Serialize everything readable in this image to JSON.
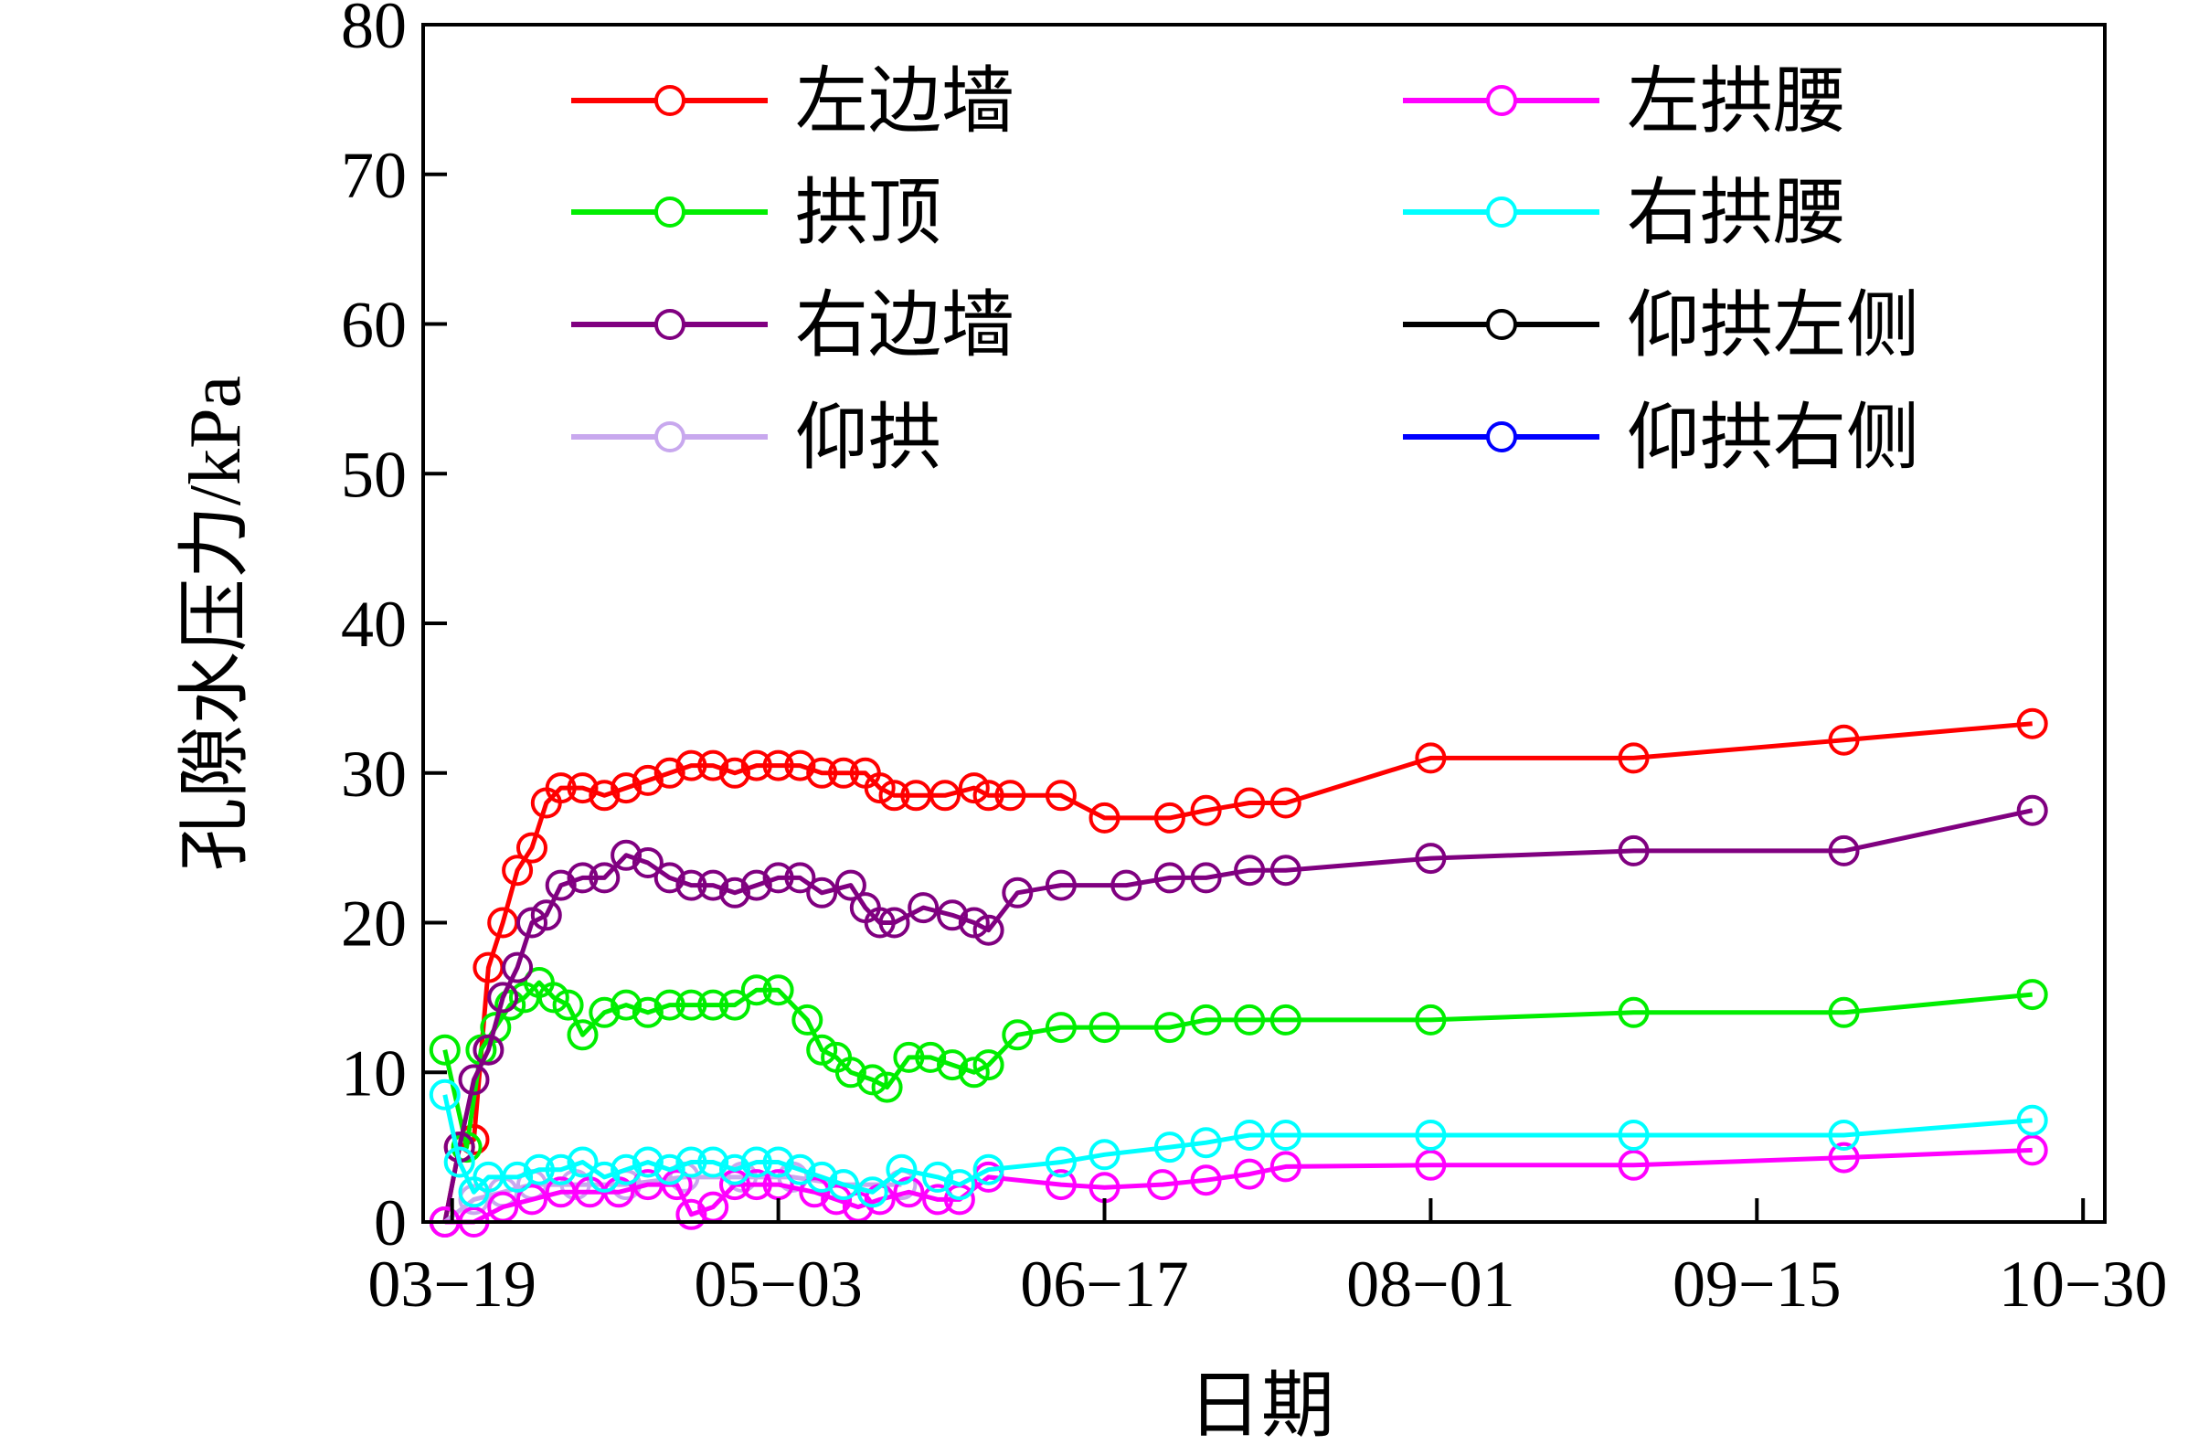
{
  "chart_data": {
    "type": "line",
    "title": "",
    "xlabel": "日期",
    "ylabel": "孔隙水压力/kPa",
    "ylim": [
      0,
      80
    ],
    "yticks": [
      0,
      10,
      20,
      30,
      40,
      50,
      60,
      70,
      80
    ],
    "xlim": [
      "2023-03-15",
      "2023-11-02"
    ],
    "xticks": [
      {
        "date": "2023-03-19",
        "label": "03−19"
      },
      {
        "date": "2023-05-03",
        "label": "05−03"
      },
      {
        "date": "2023-06-17",
        "label": "06−17"
      },
      {
        "date": "2023-08-01",
        "label": "08−01"
      },
      {
        "date": "2023-09-15",
        "label": "09−15"
      },
      {
        "date": "2023-10-30",
        "label": "10−30"
      }
    ],
    "grid": false,
    "legend_position": "top",
    "series": [
      {
        "name": "左边墙",
        "color": "#ff0000",
        "points": [
          [
            "2023-03-18",
            0
          ],
          [
            "2023-03-20",
            5
          ],
          [
            "2023-03-22",
            5.5
          ],
          [
            "2023-03-24",
            17
          ],
          [
            "2023-03-26",
            20
          ],
          [
            "2023-03-28",
            23.5
          ],
          [
            "2023-03-30",
            25
          ],
          [
            "2023-04-01",
            28
          ],
          [
            "2023-04-03",
            29
          ],
          [
            "2023-04-06",
            29
          ],
          [
            "2023-04-09",
            28.5
          ],
          [
            "2023-04-12",
            29
          ],
          [
            "2023-04-15",
            29.5
          ],
          [
            "2023-04-18",
            30
          ],
          [
            "2023-04-21",
            30.5
          ],
          [
            "2023-04-24",
            30.5
          ],
          [
            "2023-04-27",
            30
          ],
          [
            "2023-04-30",
            30.5
          ],
          [
            "2023-05-03",
            30.5
          ],
          [
            "2023-05-06",
            30.5
          ],
          [
            "2023-05-09",
            30
          ],
          [
            "2023-05-12",
            30
          ],
          [
            "2023-05-15",
            30
          ],
          [
            "2023-05-17",
            29
          ],
          [
            "2023-05-19",
            28.5
          ],
          [
            "2023-05-22",
            28.5
          ],
          [
            "2023-05-26",
            28.5
          ],
          [
            "2023-05-30",
            29
          ],
          [
            "2023-06-01",
            28.5
          ],
          [
            "2023-06-04",
            28.5
          ],
          [
            "2023-06-11",
            28.5
          ],
          [
            "2023-06-17",
            27
          ],
          [
            "2023-06-26",
            27
          ],
          [
            "2023-07-01",
            27.5
          ],
          [
            "2023-07-07",
            28
          ],
          [
            "2023-07-12",
            28
          ],
          [
            "2023-08-01",
            31
          ],
          [
            "2023-08-29",
            31
          ],
          [
            "2023-09-27",
            32.2
          ],
          [
            "2023-10-23",
            33.3
          ]
        ]
      },
      {
        "name": "拱顶",
        "color": "#00ee00",
        "points": [
          [
            "2023-03-18",
            11.5
          ],
          [
            "2023-03-21",
            5
          ],
          [
            "2023-03-23",
            11.5
          ],
          [
            "2023-03-25",
            13
          ],
          [
            "2023-03-27",
            14.5
          ],
          [
            "2023-03-29",
            15
          ],
          [
            "2023-03-31",
            16
          ],
          [
            "2023-04-02",
            15
          ],
          [
            "2023-04-04",
            14.5
          ],
          [
            "2023-04-06",
            12.5
          ],
          [
            "2023-04-09",
            14
          ],
          [
            "2023-04-12",
            14.5
          ],
          [
            "2023-04-15",
            14
          ],
          [
            "2023-04-18",
            14.5
          ],
          [
            "2023-04-21",
            14.5
          ],
          [
            "2023-04-24",
            14.5
          ],
          [
            "2023-04-27",
            14.5
          ],
          [
            "2023-04-30",
            15.5
          ],
          [
            "2023-05-03",
            15.5
          ],
          [
            "2023-05-07",
            13.5
          ],
          [
            "2023-05-09",
            11.5
          ],
          [
            "2023-05-11",
            11
          ],
          [
            "2023-05-13",
            10
          ],
          [
            "2023-05-16",
            9.5
          ],
          [
            "2023-05-18",
            9
          ],
          [
            "2023-05-21",
            11
          ],
          [
            "2023-05-24",
            11
          ],
          [
            "2023-05-27",
            10.5
          ],
          [
            "2023-05-30",
            10
          ],
          [
            "2023-06-01",
            10.5
          ],
          [
            "2023-06-05",
            12.5
          ],
          [
            "2023-06-11",
            13
          ],
          [
            "2023-06-17",
            13
          ],
          [
            "2023-06-26",
            13
          ],
          [
            "2023-07-01",
            13.5
          ],
          [
            "2023-07-07",
            13.5
          ],
          [
            "2023-07-12",
            13.5
          ],
          [
            "2023-08-01",
            13.5
          ],
          [
            "2023-08-29",
            14
          ],
          [
            "2023-09-27",
            14
          ],
          [
            "2023-10-23",
            15.2
          ]
        ]
      },
      {
        "name": "右边墙",
        "color": "#800080",
        "points": [
          [
            "2023-03-18",
            0
          ],
          [
            "2023-03-20",
            5
          ],
          [
            "2023-03-22",
            9.5
          ],
          [
            "2023-03-24",
            11.5
          ],
          [
            "2023-03-26",
            15
          ],
          [
            "2023-03-28",
            17
          ],
          [
            "2023-03-30",
            20
          ],
          [
            "2023-04-01",
            20.5
          ],
          [
            "2023-04-03",
            22.5
          ],
          [
            "2023-04-06",
            23
          ],
          [
            "2023-04-09",
            23
          ],
          [
            "2023-04-12",
            24.5
          ],
          [
            "2023-04-15",
            24
          ],
          [
            "2023-04-18",
            23
          ],
          [
            "2023-04-21",
            22.5
          ],
          [
            "2023-04-24",
            22.5
          ],
          [
            "2023-04-27",
            22
          ],
          [
            "2023-04-30",
            22.5
          ],
          [
            "2023-05-03",
            23
          ],
          [
            "2023-05-06",
            23
          ],
          [
            "2023-05-09",
            22
          ],
          [
            "2023-05-13",
            22.5
          ],
          [
            "2023-05-15",
            21
          ],
          [
            "2023-05-17",
            20
          ],
          [
            "2023-05-19",
            20
          ],
          [
            "2023-05-23",
            21
          ],
          [
            "2023-05-27",
            20.5
          ],
          [
            "2023-05-30",
            20
          ],
          [
            "2023-06-01",
            19.5
          ],
          [
            "2023-06-05",
            22
          ],
          [
            "2023-06-11",
            22.5
          ],
          [
            "2023-06-20",
            22.5
          ],
          [
            "2023-06-26",
            23
          ],
          [
            "2023-07-01",
            23
          ],
          [
            "2023-07-07",
            23.5
          ],
          [
            "2023-07-12",
            23.5
          ],
          [
            "2023-08-01",
            24.3
          ],
          [
            "2023-08-29",
            24.8
          ],
          [
            "2023-09-27",
            24.8
          ],
          [
            "2023-10-23",
            27.5
          ]
        ]
      },
      {
        "name": "仰拱",
        "color": "#c8a8ee",
        "points": [
          [
            "2023-03-18",
            0
          ],
          [
            "2023-03-22",
            1.5
          ],
          [
            "2023-03-26",
            2
          ],
          [
            "2023-03-30",
            2.5
          ],
          [
            "2023-04-05",
            2.5
          ],
          [
            "2023-04-12",
            2.5
          ],
          [
            "2023-04-20",
            3
          ],
          [
            "2023-04-28",
            3
          ],
          [
            "2023-05-05",
            3
          ],
          [
            "2023-05-12",
            2.5
          ],
          [
            "2023-05-20",
            2.5
          ]
        ]
      },
      {
        "name": "左拱腰",
        "color": "#ff00ff",
        "points": [
          [
            "2023-03-18",
            0
          ],
          [
            "2023-03-22",
            0
          ],
          [
            "2023-03-26",
            1
          ],
          [
            "2023-03-30",
            1.5
          ],
          [
            "2023-04-03",
            2
          ],
          [
            "2023-04-07",
            2
          ],
          [
            "2023-04-11",
            2
          ],
          [
            "2023-04-15",
            2.5
          ],
          [
            "2023-04-19",
            2.5
          ],
          [
            "2023-04-21",
            0.5
          ],
          [
            "2023-04-24",
            1
          ],
          [
            "2023-04-27",
            2.5
          ],
          [
            "2023-04-30",
            2.5
          ],
          [
            "2023-05-03",
            2.5
          ],
          [
            "2023-05-08",
            2
          ],
          [
            "2023-05-11",
            1.5
          ],
          [
            "2023-05-14",
            1
          ],
          [
            "2023-05-17",
            1.5
          ],
          [
            "2023-05-21",
            2
          ],
          [
            "2023-05-25",
            1.5
          ],
          [
            "2023-05-28",
            1.5
          ],
          [
            "2023-06-01",
            3
          ],
          [
            "2023-06-11",
            2.5
          ],
          [
            "2023-06-17",
            2.3
          ],
          [
            "2023-06-25",
            2.5
          ],
          [
            "2023-07-01",
            2.8
          ],
          [
            "2023-07-07",
            3.2
          ],
          [
            "2023-07-12",
            3.7
          ],
          [
            "2023-08-01",
            3.8
          ],
          [
            "2023-08-29",
            3.8
          ],
          [
            "2023-09-27",
            4.3
          ],
          [
            "2023-10-23",
            4.8
          ]
        ]
      },
      {
        "name": "右拱腰",
        "color": "#00ffff",
        "points": [
          [
            "2023-03-18",
            8.5
          ],
          [
            "2023-03-20",
            4
          ],
          [
            "2023-03-22",
            2
          ],
          [
            "2023-03-24",
            3
          ],
          [
            "2023-03-28",
            3
          ],
          [
            "2023-03-31",
            3.5
          ],
          [
            "2023-04-03",
            3.5
          ],
          [
            "2023-04-06",
            4
          ],
          [
            "2023-04-09",
            3
          ],
          [
            "2023-04-12",
            3.5
          ],
          [
            "2023-04-15",
            4
          ],
          [
            "2023-04-18",
            3.5
          ],
          [
            "2023-04-21",
            4
          ],
          [
            "2023-04-24",
            4
          ],
          [
            "2023-04-27",
            3.5
          ],
          [
            "2023-04-30",
            4
          ],
          [
            "2023-05-03",
            4
          ],
          [
            "2023-05-06",
            3.5
          ],
          [
            "2023-05-09",
            3
          ],
          [
            "2023-05-12",
            2.5
          ],
          [
            "2023-05-16",
            2
          ],
          [
            "2023-05-20",
            3.5
          ],
          [
            "2023-05-25",
            3
          ],
          [
            "2023-05-28",
            2.5
          ],
          [
            "2023-06-01",
            3.5
          ],
          [
            "2023-06-11",
            4
          ],
          [
            "2023-06-17",
            4.5
          ],
          [
            "2023-06-26",
            5
          ],
          [
            "2023-07-01",
            5.3
          ],
          [
            "2023-07-07",
            5.8
          ],
          [
            "2023-07-12",
            5.8
          ],
          [
            "2023-08-01",
            5.8
          ],
          [
            "2023-08-29",
            5.8
          ],
          [
            "2023-09-27",
            5.8
          ],
          [
            "2023-10-23",
            6.8
          ]
        ]
      },
      {
        "name": "仰拱左侧",
        "color": "#000000",
        "points": []
      },
      {
        "name": "仰拱右侧",
        "color": "#0000ff",
        "points": []
      }
    ]
  }
}
